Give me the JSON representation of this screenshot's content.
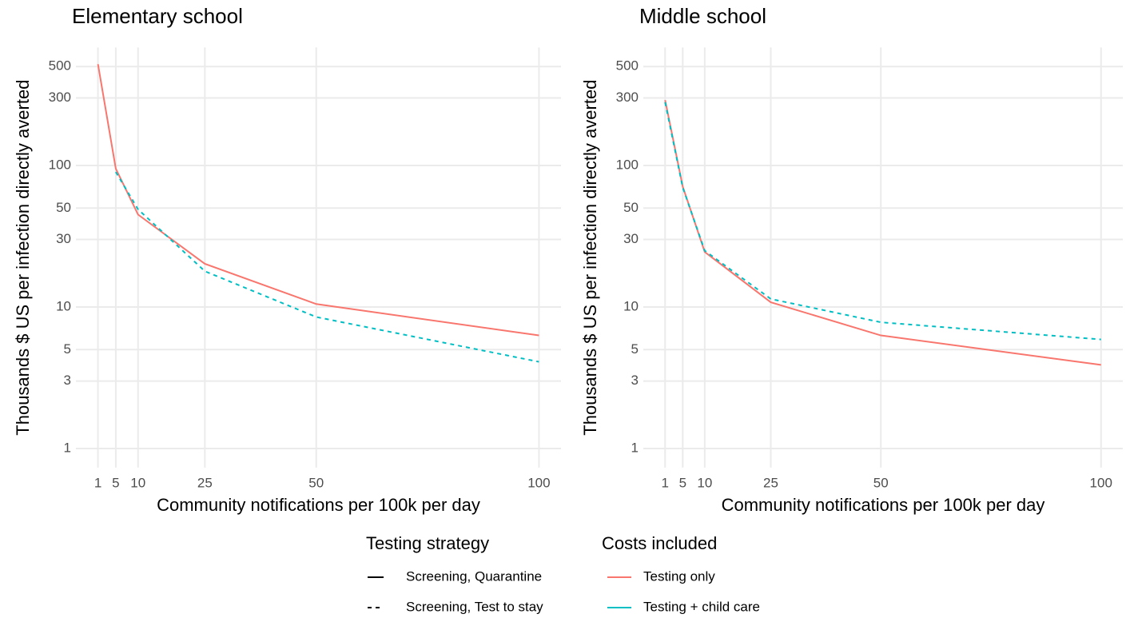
{
  "chart_data": [
    {
      "type": "line",
      "title": "Elementary school",
      "xlabel": "Community notifications per 100k per day",
      "ylabel": "Thousands $ US per infection directly averted",
      "x": [
        1,
        5,
        10,
        25,
        50,
        100
      ],
      "xlim": [
        -3.95,
        104.95
      ],
      "xticks": [
        1,
        5,
        10,
        25,
        50,
        100
      ],
      "ylim": [
        0.733,
        682
      ],
      "yticks": [
        1,
        3,
        5,
        10,
        30,
        50,
        100,
        300,
        500
      ],
      "ylog": true,
      "grid": true,
      "series": [
        {
          "color": "#F8766D",
          "linetype": "solid",
          "values": [
            520,
            95,
            45,
            20.2,
            10.5,
            6.3
          ]
        },
        {
          "color": "#00BFC4",
          "linetype": "dashed",
          "values": [
            null,
            90,
            49,
            17.9,
            8.5,
            4.1
          ]
        }
      ]
    },
    {
      "type": "line",
      "title": "Middle school",
      "xlabel": "Community notifications per 100k per day",
      "ylabel": "Thousands $ US per infection directly averted",
      "x": [
        1,
        5,
        10,
        25,
        50,
        100
      ],
      "xlim": [
        -3.95,
        104.95
      ],
      "xticks": [
        1,
        5,
        10,
        25,
        50,
        100
      ],
      "ylim": [
        0.733,
        682
      ],
      "yticks": [
        1,
        3,
        5,
        10,
        30,
        50,
        100,
        300,
        500
      ],
      "ylog": true,
      "grid": true,
      "series": [
        {
          "color": "#F8766D",
          "linetype": "solid",
          "values": [
            290,
            71,
            24.5,
            10.8,
            6.3,
            3.9
          ]
        },
        {
          "color": "#00BFC4",
          "linetype": "dashed",
          "values": [
            280,
            70,
            25,
            11.4,
            7.8,
            5.9
          ]
        }
      ]
    }
  ],
  "legend": {
    "groups": [
      {
        "title": "Testing strategy",
        "items": [
          {
            "label": "Screening, Quarantine",
            "linetype": "solid"
          },
          {
            "label": "Screening, Test to stay",
            "linetype": "dashed"
          }
        ]
      },
      {
        "title": "Costs included",
        "items": [
          {
            "label": "Testing only",
            "color": "#F8766D"
          },
          {
            "label": "Testing + child care",
            "color": "#00BFC4"
          }
        ]
      }
    ]
  }
}
